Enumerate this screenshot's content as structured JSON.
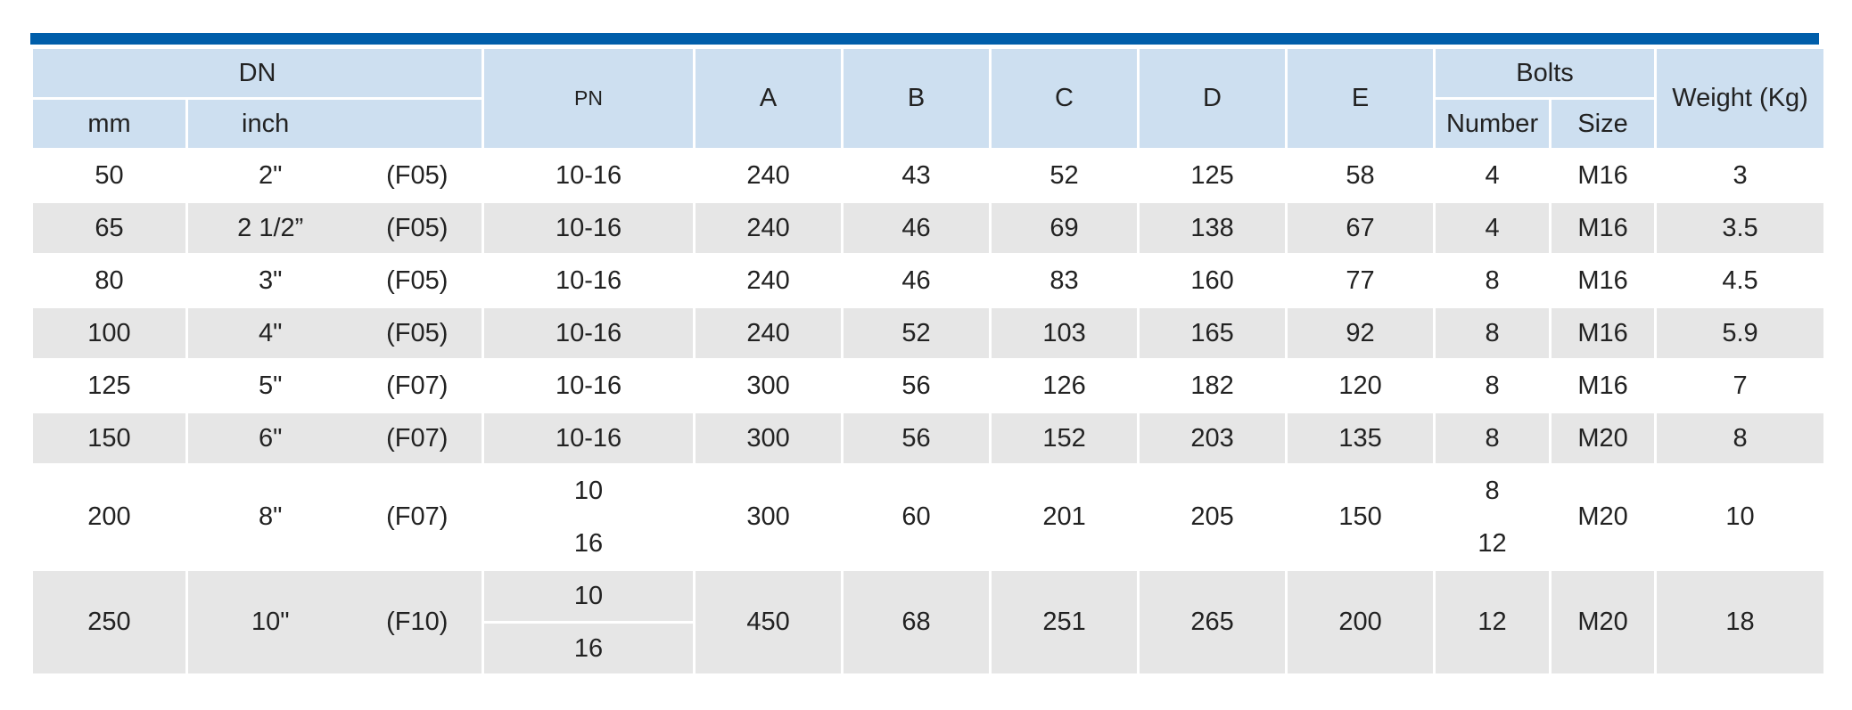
{
  "header": {
    "dn": "DN",
    "mm": "mm",
    "inch": "inch",
    "pn": "PN",
    "a": "A",
    "b": "B",
    "c": "C",
    "d": "D",
    "e": "E",
    "bolts": "Bolts",
    "number": "Number",
    "size": "Size",
    "weight": "Weight (Kg)"
  },
  "rows": [
    {
      "mm": "50",
      "inch": "2\"",
      "flange": "(F05)",
      "pn": [
        "10-16"
      ],
      "a": "240",
      "b": "43",
      "c": "52",
      "d": "125",
      "e": "58",
      "number": [
        "4"
      ],
      "size": "M16",
      "weight": "3"
    },
    {
      "mm": "65",
      "inch": "2 1/2”",
      "flange": "(F05)",
      "pn": [
        "10-16"
      ],
      "a": "240",
      "b": "46",
      "c": "69",
      "d": "138",
      "e": "67",
      "number": [
        "4"
      ],
      "size": "M16",
      "weight": "3.5"
    },
    {
      "mm": "80",
      "inch": "3\"",
      "flange": "(F05)",
      "pn": [
        "10-16"
      ],
      "a": "240",
      "b": "46",
      "c": "83",
      "d": "160",
      "e": "77",
      "number": [
        "8"
      ],
      "size": "M16",
      "weight": "4.5"
    },
    {
      "mm": "100",
      "inch": "4\"",
      "flange": "(F05)",
      "pn": [
        "10-16"
      ],
      "a": "240",
      "b": "52",
      "c": "103",
      "d": "165",
      "e": "92",
      "number": [
        "8"
      ],
      "size": "M16",
      "weight": "5.9"
    },
    {
      "mm": "125",
      "inch": "5\"",
      "flange": "(F07)",
      "pn": [
        "10-16"
      ],
      "a": "300",
      "b": "56",
      "c": "126",
      "d": "182",
      "e": "120",
      "number": [
        "8"
      ],
      "size": "M16",
      "weight": "7"
    },
    {
      "mm": "150",
      "inch": "6\"",
      "flange": "(F07)",
      "pn": [
        "10-16"
      ],
      "a": "300",
      "b": "56",
      "c": "152",
      "d": "203",
      "e": "135",
      "number": [
        "8"
      ],
      "size": "M20",
      "weight": "8"
    },
    {
      "mm": "200",
      "inch": "8\"",
      "flange": "(F07)",
      "pn": [
        "10",
        "16"
      ],
      "a": "300",
      "b": "60",
      "c": "201",
      "d": "205",
      "e": "150",
      "number": [
        "8",
        "12"
      ],
      "size": "M20",
      "weight": "10"
    },
    {
      "mm": "250",
      "inch": "10\"",
      "flange": "(F10)",
      "pn": [
        "10",
        "16"
      ],
      "a": "450",
      "b": "68",
      "c": "251",
      "d": "265",
      "e": "200",
      "number": [
        "12"
      ],
      "size": "M20",
      "weight": "18"
    }
  ]
}
